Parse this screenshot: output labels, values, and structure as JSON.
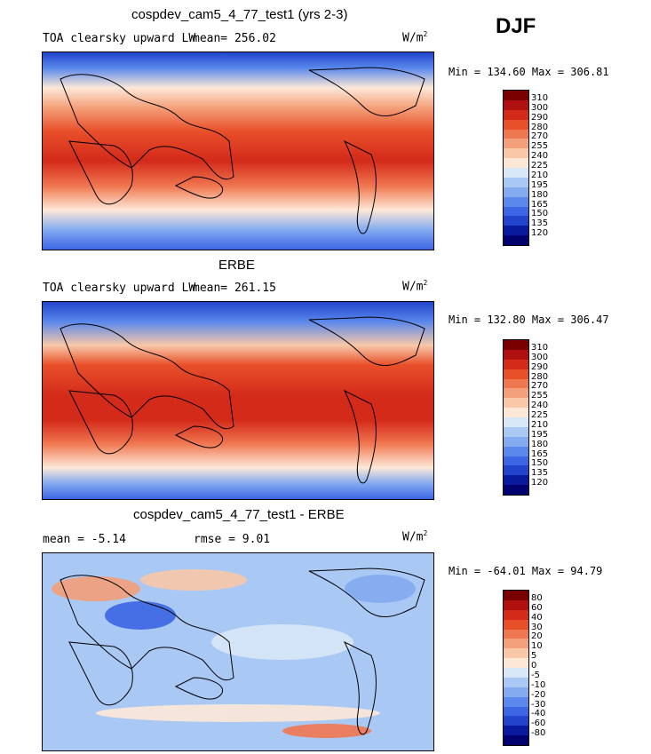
{
  "season": "DJF",
  "panels": [
    {
      "id": "model",
      "title": "cospdev_cam5_4_77_test1 (yrs 2-3)",
      "variable": "TOA clearsky upward LW",
      "stats_left": "mean= 256.02",
      "units": "W/m",
      "units_exp": "2",
      "minmax": "Min = 134.60 Max = 306.81",
      "levels": [
        "310",
        "300",
        "290",
        "280",
        "270",
        "255",
        "240",
        "225",
        "210",
        "195",
        "180",
        "165",
        "150",
        "135",
        "120"
      ],
      "colors": [
        "#7a0000",
        "#b01010",
        "#d32a1a",
        "#e8502a",
        "#f07850",
        "#f4a07a",
        "#f8c8a8",
        "#fde8d8",
        "#d8e8f8",
        "#aac8f4",
        "#84aaf0",
        "#5a88ec",
        "#3c66e4",
        "#2244cc",
        "#0a1a9c",
        "#000070"
      ]
    },
    {
      "id": "obs",
      "title": "ERBE",
      "variable": "TOA clearsky upward LW",
      "stats_left": "mean= 261.15",
      "units": "W/m",
      "units_exp": "2",
      "minmax": "Min = 132.80 Max = 306.47",
      "levels": [
        "310",
        "300",
        "290",
        "280",
        "270",
        "255",
        "240",
        "225",
        "210",
        "195",
        "180",
        "165",
        "150",
        "135",
        "120"
      ],
      "colors": [
        "#7a0000",
        "#b01010",
        "#d32a1a",
        "#e8502a",
        "#f07850",
        "#f4a07a",
        "#f8c8a8",
        "#fde8d8",
        "#d8e8f8",
        "#aac8f4",
        "#84aaf0",
        "#5a88ec",
        "#3c66e4",
        "#2244cc",
        "#0a1a9c",
        "#000070"
      ]
    },
    {
      "id": "diff",
      "title": "cospdev_cam5_4_77_test1 - ERBE",
      "stats_left": "mean =   -5.14",
      "stats_mid": "rmse =    9.01",
      "units": "W/m",
      "units_exp": "2",
      "minmax": "Min = -64.01 Max =  94.79",
      "levels": [
        "80",
        "60",
        "40",
        "30",
        "20",
        "10",
        "5",
        "0",
        "-5",
        "-10",
        "-20",
        "-30",
        "-40",
        "-60",
        "-80"
      ],
      "colors": [
        "#7a0000",
        "#b01010",
        "#d32a1a",
        "#e8502a",
        "#f07850",
        "#f4a07a",
        "#f8c8a8",
        "#fde8d8",
        "#d8e8f8",
        "#aac8f4",
        "#84aaf0",
        "#5a88ec",
        "#3c66e4",
        "#2244cc",
        "#0a1a9c",
        "#000070"
      ]
    }
  ]
}
